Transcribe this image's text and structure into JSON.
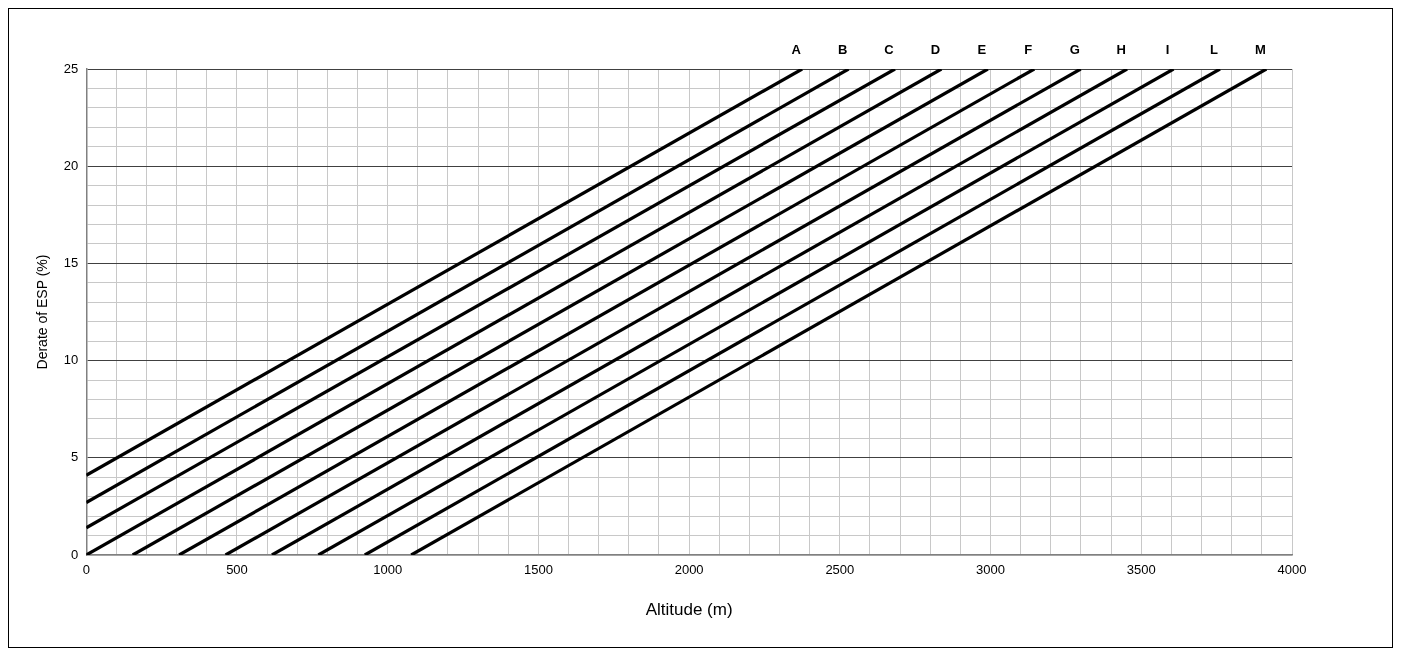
{
  "chart_data": {
    "type": "line",
    "xlabel": "Altitude (m)",
    "ylabel": "Derate of ESP (%)",
    "xlim": [
      0,
      4000
    ],
    "ylim": [
      0,
      25
    ],
    "xticks": [
      0,
      {
        "value": 100,
        "label": null
      },
      {
        "value": 200,
        "label": null
      },
      {
        "value": 300,
        "label": null
      },
      {
        "value": 400,
        "label": null
      },
      500,
      {
        "value": 600,
        "label": null
      },
      {
        "value": 700,
        "label": null
      },
      {
        "value": 800,
        "label": null
      },
      {
        "value": 900,
        "label": null
      },
      1000,
      {
        "value": 1100,
        "label": null
      },
      {
        "value": 1200,
        "label": null
      },
      {
        "value": 1300,
        "label": null
      },
      {
        "value": 1400,
        "label": null
      },
      1500,
      {
        "value": 1600,
        "label": null
      },
      {
        "value": 1700,
        "label": null
      },
      {
        "value": 1800,
        "label": null
      },
      {
        "value": 1900,
        "label": null
      },
      2000,
      {
        "value": 2100,
        "label": null
      },
      {
        "value": 2200,
        "label": null
      },
      {
        "value": 2300,
        "label": null
      },
      {
        "value": 2400,
        "label": null
      },
      2500,
      {
        "value": 2600,
        "label": null
      },
      {
        "value": 2700,
        "label": null
      },
      {
        "value": 2800,
        "label": null
      },
      {
        "value": 2900,
        "label": null
      },
      3000,
      {
        "value": 3100,
        "label": null
      },
      {
        "value": 3200,
        "label": null
      },
      {
        "value": 3300,
        "label": null
      },
      {
        "value": 3400,
        "label": null
      },
      3500,
      {
        "value": 3600,
        "label": null
      },
      {
        "value": 3700,
        "label": null
      },
      {
        "value": 3800,
        "label": null
      },
      {
        "value": 3900,
        "label": null
      },
      4000
    ],
    "yticks": [
      0,
      {
        "value": 1,
        "label": null
      },
      {
        "value": 2,
        "label": null
      },
      {
        "value": 3,
        "label": null
      },
      {
        "value": 4,
        "label": null
      },
      5,
      {
        "value": 6,
        "label": null
      },
      {
        "value": 7,
        "label": null
      },
      {
        "value": 8,
        "label": null
      },
      {
        "value": 9,
        "label": null
      },
      10,
      {
        "value": 11,
        "label": null
      },
      {
        "value": 12,
        "label": null
      },
      {
        "value": 13,
        "label": null
      },
      {
        "value": 14,
        "label": null
      },
      15,
      {
        "value": 16,
        "label": null
      },
      {
        "value": 17,
        "label": null
      },
      {
        "value": 18,
        "label": null
      },
      {
        "value": 19,
        "label": null
      },
      20,
      {
        "value": 21,
        "label": null
      },
      {
        "value": 22,
        "label": null
      },
      {
        "value": 23,
        "label": null
      },
      {
        "value": 24,
        "label": null
      },
      25
    ],
    "grid": true,
    "legend": false,
    "marker": "none",
    "line_style": "solid",
    "series": [
      {
        "name": "A",
        "color": "#000000",
        "x": [
          0,
          2375
        ],
        "values": [
          4.1,
          25
        ]
      },
      {
        "name": "B",
        "color": "#000000",
        "x": [
          0,
          2529
        ],
        "values": [
          2.7,
          25
        ]
      },
      {
        "name": "C",
        "color": "#000000",
        "x": [
          0,
          2683
        ],
        "values": [
          1.4,
          25
        ]
      },
      {
        "name": "D",
        "color": "#000000",
        "x": [
          0,
          2837
        ],
        "values": [
          0,
          25
        ]
      },
      {
        "name": "E",
        "color": "#000000",
        "x": [
          154,
          2991
        ],
        "values": [
          0,
          25
        ]
      },
      {
        "name": "F",
        "color": "#000000",
        "x": [
          308,
          3145
        ],
        "values": [
          0,
          25
        ]
      },
      {
        "name": "G",
        "color": "#000000",
        "x": [
          462,
          3299
        ],
        "values": [
          0,
          25
        ]
      },
      {
        "name": "H",
        "color": "#000000",
        "x": [
          616,
          3453
        ],
        "values": [
          0,
          25
        ]
      },
      {
        "name": "I",
        "color": "#000000",
        "x": [
          770,
          3607
        ],
        "values": [
          0,
          25
        ]
      },
      {
        "name": "L",
        "color": "#000000",
        "x": [
          924,
          3761
        ],
        "values": [
          0,
          25
        ]
      },
      {
        "name": "M",
        "color": "#000000",
        "x": [
          1078,
          3915
        ],
        "values": [
          0,
          25
        ]
      }
    ]
  }
}
